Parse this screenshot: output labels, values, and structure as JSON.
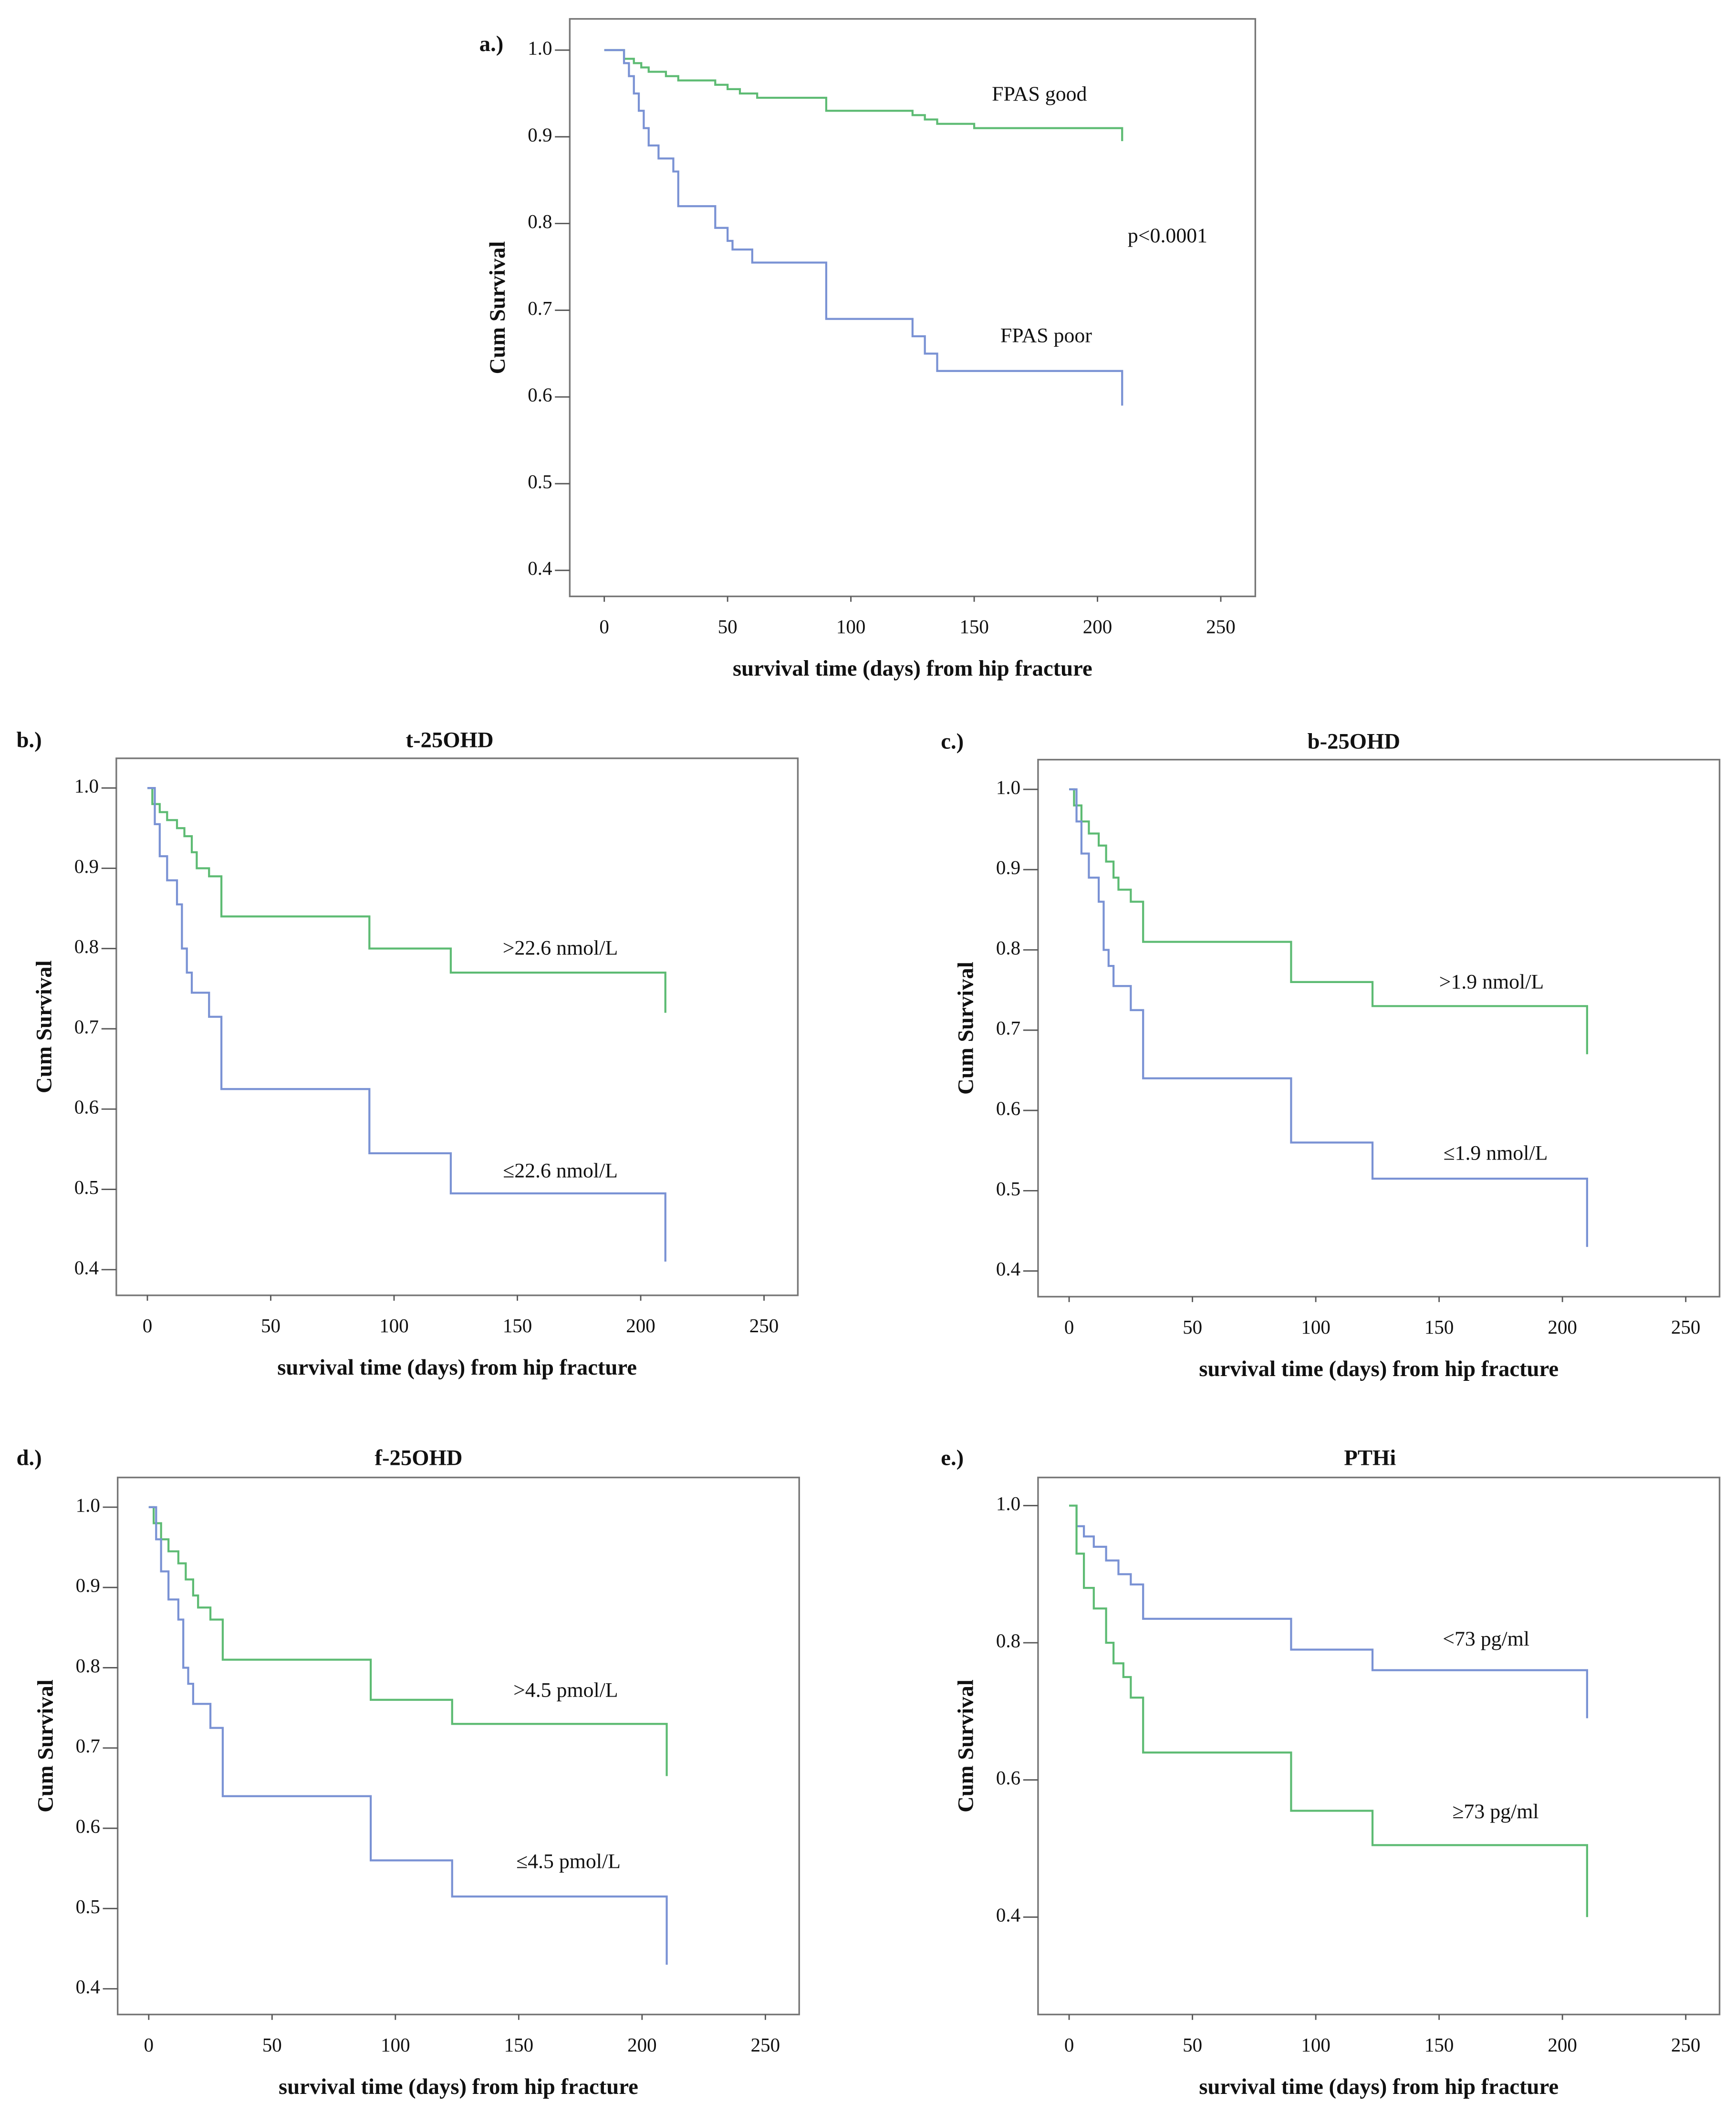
{
  "chart_data": [
    {
      "type": "line",
      "panel_label": "a.)",
      "x_label": "survival time (days) from hip fracture",
      "y_label": "Cum Survival",
      "xlim": [
        -14,
        264
      ],
      "ylim": [
        0.37,
        1.036
      ],
      "xticks": [
        0,
        50,
        100,
        150,
        200,
        250
      ],
      "yticks": [
        0.4,
        0.5,
        0.6,
        0.7,
        0.8,
        0.9,
        {
          "value": 1,
          "label": "1.0"
        }
      ],
      "annotations": [
        "p<0.0001"
      ],
      "series": [
        {
          "name": "FPAS good",
          "color": "#5dbb73",
          "x": [
            0,
            8,
            12,
            15,
            18,
            25,
            30,
            45,
            50,
            55,
            62,
            90,
            125,
            130,
            135,
            150,
            210
          ],
          "values": [
            1.0,
            0.99,
            0.985,
            0.98,
            0.975,
            0.97,
            0.965,
            0.96,
            0.955,
            0.95,
            0.945,
            0.93,
            0.925,
            0.92,
            0.915,
            0.91,
            0.895
          ]
        },
        {
          "name": "FPAS poor",
          "color": "#7a92d4",
          "x": [
            0,
            8,
            10,
            12,
            14,
            16,
            18,
            22,
            28,
            30,
            45,
            50,
            52,
            60,
            90,
            125,
            130,
            135,
            210
          ],
          "values": [
            1.0,
            0.985,
            0.97,
            0.95,
            0.93,
            0.91,
            0.89,
            0.875,
            0.86,
            0.82,
            0.795,
            0.78,
            0.77,
            0.755,
            0.69,
            0.67,
            0.65,
            0.63,
            0.59
          ]
        }
      ]
    },
    {
      "type": "line",
      "panel_label": "b.)",
      "title": "t-25OHD",
      "x_label": "survival time (days) from hip fracture",
      "y_label": "Cum Survival",
      "xlim": [
        -12.6,
        263.7
      ],
      "ylim": [
        0.368,
        1.037
      ],
      "xticks": [
        0,
        50,
        100,
        150,
        200,
        250
      ],
      "yticks": [
        0.4,
        0.5,
        0.6,
        0.7,
        0.8,
        0.9,
        {
          "value": 1,
          "label": "1.0"
        }
      ],
      "series": [
        {
          "name": ">22.6 nmol/L",
          "color": "#5dbb73",
          "x": [
            0,
            2,
            5,
            8,
            12,
            15,
            18,
            20,
            25,
            30,
            90,
            123,
            210
          ],
          "values": [
            1.0,
            0.98,
            0.97,
            0.96,
            0.95,
            0.94,
            0.92,
            0.9,
            0.89,
            0.84,
            0.8,
            0.77,
            0.72
          ]
        },
        {
          "name": "≤22.6 nmol/L",
          "color": "#7a92d4",
          "x": [
            0,
            3,
            5,
            8,
            12,
            14,
            16,
            18,
            25,
            30,
            90,
            123,
            210
          ],
          "values": [
            1.0,
            0.955,
            0.915,
            0.885,
            0.855,
            0.8,
            0.77,
            0.745,
            0.715,
            0.625,
            0.545,
            0.495,
            0.41
          ]
        }
      ]
    },
    {
      "type": "line",
      "panel_label": "c.)",
      "title": "b-25OHD",
      "x_label": "survival time (days) from hip fracture",
      "y_label": "Cum Survival",
      "xlim": [
        -12.6,
        263.7
      ],
      "ylim": [
        0.368,
        1.037
      ],
      "xticks": [
        0,
        50,
        100,
        150,
        200,
        250
      ],
      "yticks": [
        0.4,
        0.5,
        0.6,
        0.7,
        0.8,
        0.9,
        {
          "value": 1,
          "label": "1.0"
        }
      ],
      "series": [
        {
          "name": ">1.9 nmol/L",
          "color": "#5dbb73",
          "x": [
            0,
            2,
            5,
            8,
            12,
            15,
            18,
            20,
            25,
            30,
            90,
            123,
            210
          ],
          "values": [
            1.0,
            0.98,
            0.96,
            0.945,
            0.93,
            0.91,
            0.89,
            0.875,
            0.86,
            0.81,
            0.76,
            0.73,
            0.67
          ]
        },
        {
          "name": "≤1.9 nmol/L",
          "color": "#7a92d4",
          "x": [
            0,
            3,
            5,
            8,
            12,
            14,
            16,
            18,
            25,
            30,
            90,
            123,
            210
          ],
          "values": [
            1.0,
            0.96,
            0.92,
            0.89,
            0.86,
            0.8,
            0.78,
            0.755,
            0.725,
            0.64,
            0.56,
            0.515,
            0.43
          ]
        }
      ]
    },
    {
      "type": "line",
      "panel_label": "d.)",
      "title": "f-25OHD",
      "x_label": "survival time (days) from hip fracture",
      "y_label": "Cum Survival",
      "xlim": [
        -12.6,
        263.7
      ],
      "ylim": [
        0.368,
        1.037
      ],
      "xticks": [
        0,
        50,
        100,
        150,
        200,
        250
      ],
      "yticks": [
        0.4,
        0.5,
        0.6,
        0.7,
        0.8,
        0.9,
        {
          "value": 1,
          "label": "1.0"
        }
      ],
      "series": [
        {
          "name": ">4.5 pmol/L",
          "color": "#5dbb73",
          "x": [
            0,
            2,
            5,
            8,
            12,
            15,
            18,
            20,
            25,
            30,
            90,
            123,
            210
          ],
          "values": [
            1.0,
            0.98,
            0.96,
            0.945,
            0.93,
            0.91,
            0.89,
            0.875,
            0.86,
            0.81,
            0.76,
            0.73,
            0.665
          ]
        },
        {
          "name": "≤4.5 pmol/L",
          "color": "#7a92d4",
          "x": [
            0,
            3,
            5,
            8,
            12,
            14,
            16,
            18,
            25,
            30,
            90,
            123,
            210
          ],
          "values": [
            1.0,
            0.96,
            0.92,
            0.885,
            0.86,
            0.8,
            0.78,
            0.755,
            0.725,
            0.64,
            0.56,
            0.515,
            0.43
          ]
        }
      ]
    },
    {
      "type": "line",
      "panel_label": "e.)",
      "title": "PTHi",
      "x_label": "survival time (days) from hip fracture",
      "y_label": "Cum Survival",
      "xlim": [
        -12.6,
        263.7
      ],
      "ylim": [
        0.258,
        1.041
      ],
      "xticks": [
        0,
        50,
        100,
        150,
        200,
        250
      ],
      "yticks": [
        0.4,
        0.6,
        0.8,
        {
          "value": 1,
          "label": "1.0"
        }
      ],
      "series": [
        {
          "name": "<73 pg/ml",
          "color": "#7a92d4",
          "x": [
            0,
            3,
            6,
            10,
            15,
            20,
            25,
            30,
            90,
            123,
            210
          ],
          "values": [
            1.0,
            0.97,
            0.955,
            0.94,
            0.92,
            0.9,
            0.885,
            0.835,
            0.79,
            0.76,
            0.69
          ]
        },
        {
          "name": "≥73 pg/ml",
          "color": "#5dbb73",
          "x": [
            0,
            3,
            6,
            10,
            15,
            18,
            22,
            25,
            30,
            90,
            123,
            210
          ],
          "values": [
            1.0,
            0.93,
            0.88,
            0.85,
            0.8,
            0.77,
            0.75,
            0.72,
            0.64,
            0.555,
            0.505,
            0.4
          ]
        }
      ]
    }
  ]
}
